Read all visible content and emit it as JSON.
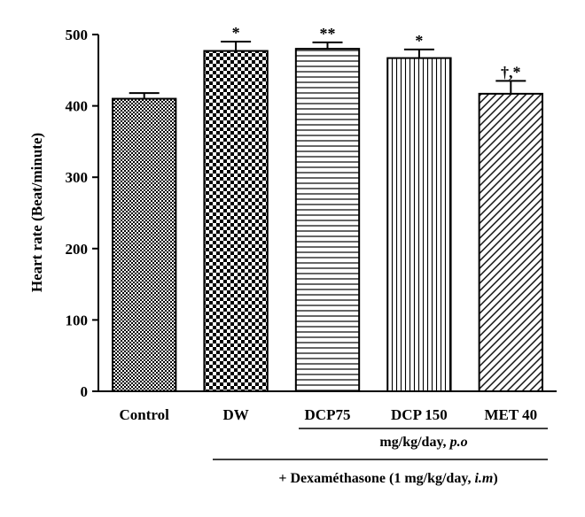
{
  "chart_data": {
    "type": "bar",
    "title": "",
    "xlabel": "",
    "ylabel": "Heart rate (Beat/minute)",
    "ylim": [
      0,
      500
    ],
    "yticks": [
      "0",
      "100",
      "200",
      "300",
      "400",
      "500"
    ],
    "categories": [
      "Control",
      "DW",
      "DCP75",
      "DCP 150",
      "MET 40"
    ],
    "values": [
      410,
      477,
      480,
      467,
      417
    ],
    "errors": [
      8,
      13,
      9,
      12,
      18
    ],
    "significance": [
      "",
      "*",
      "**",
      "*",
      "†,*"
    ],
    "fill_patterns": [
      "fine-checker",
      "checker",
      "horizontal-lines",
      "vertical-lines",
      "diagonal-lines"
    ],
    "grid": false
  },
  "annotations": {
    "dose_note": "mg/kg/day, p.o",
    "treatment_note": "+ Dexaméthasone (1 mg/kg/day, i.m)"
  }
}
